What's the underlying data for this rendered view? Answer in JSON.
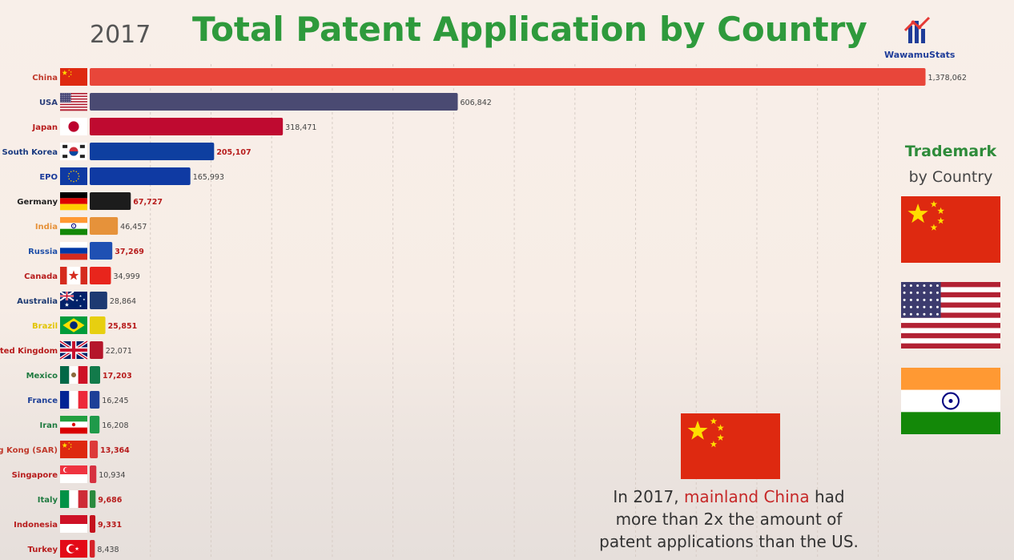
{
  "header": {
    "year": "2017",
    "title": "Total Patent Application by Country",
    "logo_text": "WawamuStats"
  },
  "chart_data": {
    "type": "bar",
    "orientation": "horizontal",
    "title": "Total Patent Application by Country",
    "categories": [
      "China",
      "USA",
      "Japan",
      "South Korea",
      "EPO",
      "Germany",
      "India",
      "Russia",
      "Canada",
      "Australia",
      "Brazil",
      "United Kingdom",
      "Mexico",
      "France",
      "Iran",
      "Hong Kong (SAR)",
      "Singapore",
      "Italy",
      "Indonesia",
      "Turkey"
    ],
    "values": [
      1378062,
      606842,
      318471,
      205107,
      165993,
      67727,
      46457,
      37269,
      34999,
      28864,
      25851,
      22071,
      17203,
      16245,
      16208,
      13364,
      10934,
      9686,
      9331,
      8438
    ],
    "value_labels": [
      "1,378,062",
      "606,842",
      "318,471",
      "205,107",
      "165,993",
      "67,727",
      "46,457",
      "37,269",
      "34,999",
      "28,864",
      "25,851",
      "22,071",
      "17,203",
      "16,245",
      "16,208",
      "13,364",
      "10,934",
      "9,686",
      "9,331",
      "8,438"
    ],
    "bar_colors": [
      "#e8463a",
      "#4a4a72",
      "#bf0a30",
      "#0e3fa0",
      "#0f3aa3",
      "#1c1c1c",
      "#e6923a",
      "#1f50b3",
      "#e8251c",
      "#1d3a72",
      "#e7cf10",
      "#b5162b",
      "#127a4a",
      "#1d3f97",
      "#1f9a4a",
      "#dd3a3a",
      "#d63140",
      "#2a8a3e",
      "#c4121d",
      "#d62329"
    ],
    "label_colors": [
      "#c0392b",
      "#2c3e7a",
      "#b71c1c",
      "#1a3a80",
      "#1a3a9a",
      "#222222",
      "#e6923a",
      "#1f4fa8",
      "#b71c1c",
      "#1d3a72",
      "#e2c400",
      "#b71c1c",
      "#1e7a3f",
      "#1d3f97",
      "#1e7a3f",
      "#c0392b",
      "#b71c1c",
      "#1e7a3f",
      "#b71c1c",
      "#b71c1c"
    ],
    "value_label_colors": [
      "#444444",
      "#444444",
      "#444444",
      "#b71c1c",
      "#444444",
      "#b71c1c",
      "#444444",
      "#b71c1c",
      "#444444",
      "#444444",
      "#b71c1c",
      "#444444",
      "#b71c1c",
      "#444444",
      "#444444",
      "#b71c1c",
      "#444444",
      "#b71c1c",
      "#b71c1c",
      "#444444"
    ],
    "flags": [
      "china",
      "usa",
      "japan",
      "south-korea",
      "eu",
      "germany",
      "india",
      "russia",
      "canada",
      "australia",
      "brazil",
      "uk",
      "mexico",
      "france",
      "iran",
      "hong-kong",
      "singapore",
      "italy",
      "indonesia",
      "turkey"
    ],
    "grid": true,
    "xlim": [
      0,
      1380000
    ]
  },
  "sidebar": {
    "title_line1": "Trademark",
    "title_line2": "by Country",
    "flags": [
      "china",
      "usa",
      "india"
    ]
  },
  "caption": {
    "prefix": "In 2017, ",
    "highlight": "mainland China",
    "line1_end": " had",
    "line2": "more than 2x the amount of",
    "line3": "patent applications than the US."
  }
}
